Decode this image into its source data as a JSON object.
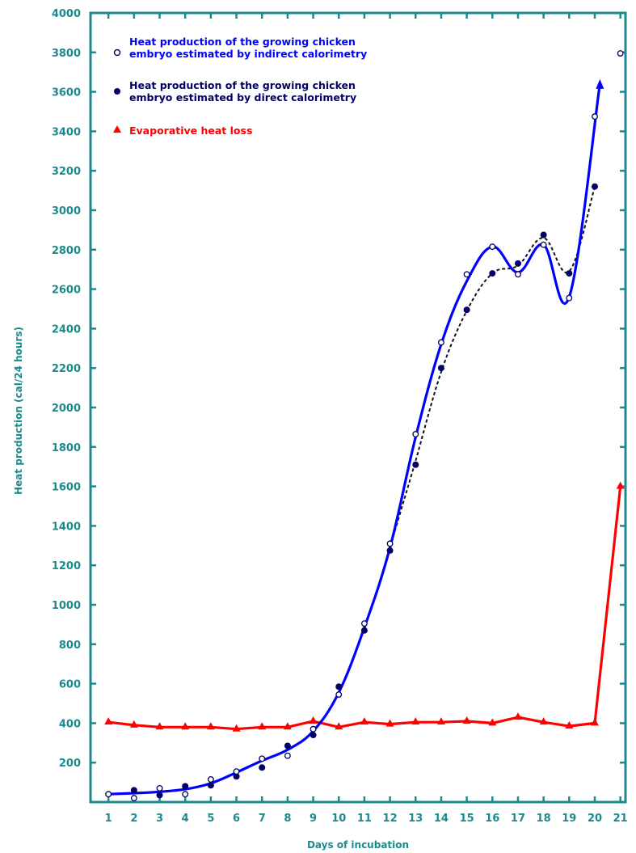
{
  "chart_data": {
    "type": "line",
    "xlabel": "Days of incubation",
    "ylabel": "Heat production (cal/24 hours)",
    "xlim": [
      0.3,
      21.2
    ],
    "ylim": [
      0,
      4000
    ],
    "x_ticks": [
      1,
      2,
      3,
      4,
      5,
      6,
      7,
      8,
      9,
      10,
      11,
      12,
      13,
      14,
      15,
      16,
      17,
      18,
      19,
      20,
      21
    ],
    "y_ticks": [
      200,
      400,
      600,
      800,
      1000,
      1200,
      1400,
      1600,
      1800,
      2000,
      2200,
      2400,
      2600,
      2800,
      3000,
      3200,
      3400,
      3600,
      3800,
      4000
    ],
    "grid": false,
    "legend_position": "top-left",
    "series": [
      {
        "name": "Heat production of the growing chicken embryo estimated by indirect calorimetry",
        "color": "#0000ff",
        "marker": "open-circle",
        "points": [
          [
            1,
            40
          ],
          [
            2,
            20
          ],
          [
            3,
            70
          ],
          [
            4,
            40
          ],
          [
            5,
            115
          ],
          [
            6,
            155
          ],
          [
            7,
            220
          ],
          [
            8,
            235
          ],
          [
            9,
            370
          ],
          [
            10,
            545
          ],
          [
            11,
            905
          ],
          [
            12,
            1310
          ],
          [
            13,
            1865
          ],
          [
            14,
            2330
          ],
          [
            15,
            2675
          ],
          [
            16,
            2815
          ],
          [
            17,
            2675
          ],
          [
            18,
            2825
          ],
          [
            19,
            2555
          ],
          [
            20,
            3475
          ],
          [
            21,
            3795
          ]
        ],
        "curve": [
          [
            1,
            40
          ],
          [
            2,
            45
          ],
          [
            3,
            52
          ],
          [
            4,
            65
          ],
          [
            5,
            95
          ],
          [
            6,
            150
          ],
          [
            7,
            210
          ],
          [
            8,
            265
          ],
          [
            9,
            360
          ],
          [
            10,
            555
          ],
          [
            11,
            885
          ],
          [
            12,
            1290
          ],
          [
            13,
            1850
          ],
          [
            14,
            2320
          ],
          [
            15,
            2640
          ],
          [
            16,
            2815
          ],
          [
            17,
            2685
          ],
          [
            18,
            2825
          ],
          [
            19,
            2560
          ],
          [
            20.2,
            3640
          ]
        ]
      },
      {
        "name": "Heat production of the growing chicken embryo estimated by direct calorimetry",
        "color": "#000066",
        "marker": "filled-circle",
        "points": [
          [
            2,
            60
          ],
          [
            3,
            35
          ],
          [
            4,
            80
          ],
          [
            5,
            85
          ],
          [
            6,
            130
          ],
          [
            7,
            175
          ],
          [
            8,
            285
          ],
          [
            9,
            340
          ],
          [
            10,
            585
          ],
          [
            11,
            870
          ],
          [
            12,
            1275
          ],
          [
            13,
            1710
          ],
          [
            14,
            2200
          ],
          [
            15,
            2495
          ],
          [
            16,
            2680
          ],
          [
            17,
            2730
          ],
          [
            18,
            2875
          ],
          [
            19,
            2680
          ],
          [
            20,
            3120
          ]
        ],
        "curve": [
          [
            12,
            1290
          ],
          [
            12.5,
            1510
          ],
          [
            13,
            1730
          ],
          [
            14,
            2180
          ],
          [
            15,
            2490
          ],
          [
            16,
            2680
          ],
          [
            17,
            2720
          ],
          [
            18,
            2860
          ],
          [
            19,
            2690
          ],
          [
            20,
            3120
          ]
        ]
      },
      {
        "name": "Evaporative heat loss",
        "color": "#ff0000",
        "marker": "triangle",
        "points": [
          [
            1,
            405
          ],
          [
            2,
            390
          ],
          [
            3,
            380
          ],
          [
            4,
            380
          ],
          [
            5,
            380
          ],
          [
            6,
            370
          ],
          [
            7,
            380
          ],
          [
            8,
            380
          ],
          [
            9,
            410
          ],
          [
            10,
            380
          ],
          [
            11,
            405
          ],
          [
            12,
            395
          ],
          [
            13,
            405
          ],
          [
            14,
            405
          ],
          [
            15,
            410
          ],
          [
            16,
            400
          ],
          [
            17,
            430
          ],
          [
            18,
            405
          ],
          [
            19,
            385
          ],
          [
            20,
            400
          ],
          [
            21,
            1600
          ]
        ]
      }
    ]
  }
}
